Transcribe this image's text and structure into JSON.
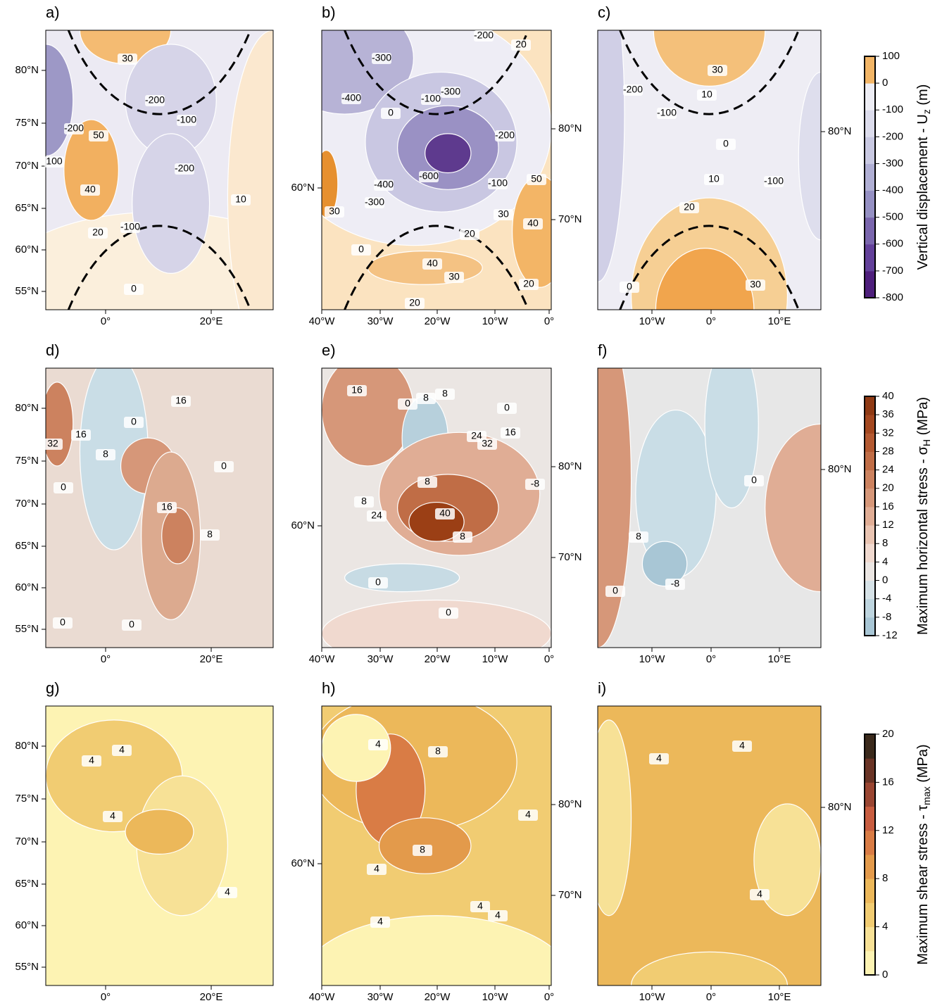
{
  "panels": [
    {
      "label": "a)",
      "yticks_left": [
        "80°N",
        "75°N",
        "70°N",
        "65°N",
        "60°N",
        "55°N"
      ],
      "xticks": [
        "0°",
        "20°E"
      ],
      "contour_labels": [
        "30",
        "-200",
        "-100",
        "50",
        "40",
        "-200",
        "-100",
        "20",
        "10",
        "0",
        "-200",
        "100"
      ]
    },
    {
      "label": "b)",
      "yticks_left": [
        "60°N"
      ],
      "yticks_right": [
        "80°N",
        "70°N"
      ],
      "xticks": [
        "40°W",
        "30°W",
        "20°W",
        "10°W",
        "0°"
      ],
      "contour_labels": [
        "-200",
        "-300",
        "-400",
        "0",
        "-300",
        "-100",
        "-600",
        "-400",
        "-300",
        "-200",
        "-100",
        "50",
        "30",
        "40",
        "20",
        "40",
        "30",
        "20",
        "20",
        "0",
        "30",
        "20"
      ]
    },
    {
      "label": "c)",
      "yticks_right": [
        "80°N"
      ],
      "xticks": [
        "10°W",
        "0°",
        "10°E"
      ],
      "contour_labels": [
        "30",
        "-200",
        "-100",
        "10",
        "0",
        "10",
        "-100",
        "20",
        "0",
        "30"
      ]
    },
    {
      "label": "d)",
      "yticks_left": [
        "80°N",
        "75°N",
        "70°N",
        "65°N",
        "60°N",
        "55°N"
      ],
      "xticks": [
        "0°",
        "20°E"
      ],
      "contour_labels": [
        "32",
        "16",
        "0",
        "8",
        "16",
        "0",
        "0",
        "16",
        "8",
        "0",
        "0"
      ]
    },
    {
      "label": "e)",
      "yticks_left": [
        "60°N"
      ],
      "yticks_right": [
        "80°N",
        "70°N"
      ],
      "xticks": [
        "40°W",
        "30°W",
        "20°W",
        "10°W",
        "0°"
      ],
      "contour_labels": [
        "16",
        "0",
        "8",
        "8",
        "0",
        "16",
        "24",
        "32",
        "8",
        "8",
        "-8",
        "24",
        "40",
        "8",
        "0",
        "0"
      ]
    },
    {
      "label": "f)",
      "yticks_right": [
        "80°N"
      ],
      "xticks": [
        "10°W",
        "0°",
        "10°E"
      ],
      "contour_labels": [
        "0",
        "8",
        "-8",
        "0"
      ]
    },
    {
      "label": "g)",
      "yticks_left": [
        "80°N",
        "75°N",
        "70°N",
        "65°N",
        "60°N",
        "55°N"
      ],
      "xticks": [
        "0°",
        "20°E"
      ],
      "contour_labels": [
        "4",
        "4",
        "4",
        "4"
      ]
    },
    {
      "label": "h)",
      "yticks_left": [
        "60°N"
      ],
      "yticks_right": [
        "80°N",
        "70°N"
      ],
      "xticks": [
        "40°W",
        "30°W",
        "20°W",
        "10°W",
        "0°"
      ],
      "contour_labels": [
        "4",
        "8",
        "4",
        "8",
        "4",
        "4",
        "4",
        "4"
      ]
    },
    {
      "label": "i)",
      "yticks_right": [
        "80°N"
      ],
      "xticks": [
        "10°W",
        "0°",
        "10°E"
      ],
      "contour_labels": [
        "4",
        "4",
        "4"
      ]
    }
  ],
  "colorbars": [
    {
      "title": "Vertical displacement - U",
      "subscript": "z",
      "unit": " (m)",
      "lim": [
        -800,
        100
      ],
      "ticks": [
        100,
        0,
        -100,
        -200,
        -300,
        -400,
        -500,
        -600,
        -700,
        -800
      ],
      "colors": [
        "#4e1f7c",
        "#63419a",
        "#7a66ad",
        "#9590c3",
        "#b0afd4",
        "#c9c9e2",
        "#dcdcec",
        "#ededf4",
        "#f2b566"
      ]
    },
    {
      "title": "Maximum horizontal stress - σ",
      "subscript": "H",
      "unit": " (MPa)",
      "lim": [
        -12,
        40
      ],
      "ticks": [
        40,
        36,
        32,
        28,
        24,
        20,
        16,
        12,
        8,
        4,
        0,
        -4,
        -8,
        -12
      ],
      "colors": [
        "#a8c6d5",
        "#bed5df",
        "#d6e2e7",
        "#ebe6e3",
        "#f0d9cf",
        "#e9c4b2",
        "#e0ad95",
        "#d69779",
        "#cc825f",
        "#c06d46",
        "#b45a32",
        "#a44820",
        "#8f3a14"
      ]
    },
    {
      "title": "Maximum shear stress - τ",
      "subscript": "max",
      "unit": " (MPa)",
      "lim": [
        0,
        20
      ],
      "ticks": [
        20,
        16,
        12,
        8,
        4,
        0
      ],
      "colors": [
        "#fdf3b3",
        "#f7e196",
        "#f1cc72",
        "#ecb85a",
        "#e39a4b",
        "#d97c45",
        "#c85d40",
        "#9a4632",
        "#6a3426",
        "#3b2a1c"
      ]
    }
  ]
}
